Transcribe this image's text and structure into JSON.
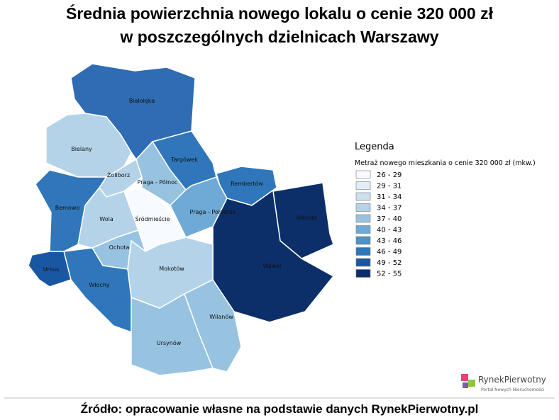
{
  "title_lines": [
    "Średnia powierzchnia nowego lokalu o cenie 320 000 zł",
    "w poszczególnych dzielnicach Warszawy"
  ],
  "legend": {
    "title": "Legenda",
    "subtitle": "Metraż nowego mieszkania o cenie 320 000 zł (mkw.)",
    "classes": [
      {
        "label": "26 - 29",
        "color": "#f7fbff"
      },
      {
        "label": "29 - 31",
        "color": "#e2edf8"
      },
      {
        "label": "31 - 34",
        "color": "#cde0f1"
      },
      {
        "label": "34 - 37",
        "color": "#b4d3e9"
      },
      {
        "label": "37 - 40",
        "color": "#97c3e0"
      },
      {
        "label": "40 - 43",
        "color": "#6fa9d5"
      },
      {
        "label": "43 - 46",
        "color": "#4d92c8"
      },
      {
        "label": "46 - 49",
        "color": "#2f77ba"
      },
      {
        "label": "49 - 52",
        "color": "#1a57a2"
      },
      {
        "label": "52 - 55",
        "color": "#0c2f6a"
      }
    ]
  },
  "districts": [
    {
      "name": "Białołęka",
      "color": "#2f6cb3"
    },
    {
      "name": "Bielany",
      "color": "#b4d3e9"
    },
    {
      "name": "Bemowo",
      "color": "#2f77ba"
    },
    {
      "name": "Żoliborz",
      "color": "#b4d3e9"
    },
    {
      "name": "Wola",
      "color": "#b4d3e9"
    },
    {
      "name": "Śródmieście",
      "color": "#f7fbff"
    },
    {
      "name": "Praga - Północ",
      "color": "#97c3e0"
    },
    {
      "name": "Targówek",
      "color": "#2f77ba"
    },
    {
      "name": "Rembertów",
      "color": "#2f77ba"
    },
    {
      "name": "Praga - Południe",
      "color": "#6fa9d5"
    },
    {
      "name": "Wesoła",
      "color": "#0c2f6a"
    },
    {
      "name": "Wawer",
      "color": "#0c2f6a"
    },
    {
      "name": "Ochota",
      "color": "#97c3e0"
    },
    {
      "name": "Mokotów",
      "color": "#b4d3e9"
    },
    {
      "name": "Włochy",
      "color": "#2f77ba"
    },
    {
      "name": "Ursus",
      "color": "#1a57a2"
    },
    {
      "name": "Ursynów",
      "color": "#97c3e0"
    },
    {
      "name": "Wilanów",
      "color": "#97c3e0"
    }
  ],
  "source": "Źródło: opracowanie własne na podstawie danych RynekPierwotny.pl",
  "logo": {
    "name": "RynekPierwotny",
    "tagline": "Portal Nowych Nieruchomości"
  }
}
